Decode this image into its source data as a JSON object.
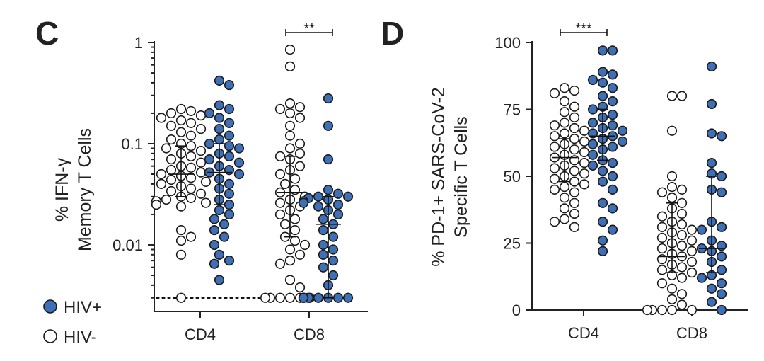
{
  "colors": {
    "hiv_pos": "#3f6fb5",
    "hiv_neg": "#ffffff",
    "stroke": "#1a1a1a"
  },
  "legend": {
    "entries": [
      {
        "label": "HIV+",
        "group": "hiv_pos"
      },
      {
        "label": "HIV-",
        "group": "hiv_neg"
      }
    ]
  },
  "chart_data": [
    {
      "type": "scatter",
      "panel_label": "C",
      "title": "",
      "ylabel_line1": "% IFN-γ",
      "ylabel_line2": "Memory T Cells",
      "yscale": "log",
      "ylim": [
        0.0022,
        1
      ],
      "yticks": [
        0.01,
        0.1,
        1
      ],
      "ytick_labels": [
        "0.01",
        "0.1",
        "1"
      ],
      "categories": [
        "CD4",
        "CD8"
      ],
      "detection_limit": 0.003,
      "series": [
        {
          "group": "hiv_neg",
          "name": "HIV-",
          "category": "CD4",
          "median": 0.05,
          "q1": 0.03,
          "q3": 0.095,
          "values": [
            0.22,
            0.21,
            0.2,
            0.19,
            0.18,
            0.17,
            0.16,
            0.15,
            0.14,
            0.13,
            0.12,
            0.11,
            0.1,
            0.095,
            0.09,
            0.085,
            0.08,
            0.075,
            0.07,
            0.065,
            0.06,
            0.058,
            0.055,
            0.052,
            0.05,
            0.048,
            0.046,
            0.044,
            0.042,
            0.04,
            0.038,
            0.036,
            0.034,
            0.032,
            0.03,
            0.029,
            0.028,
            0.027,
            0.026,
            0.025,
            0.024,
            0.014,
            0.012,
            0.011,
            0.008,
            0.003
          ]
        },
        {
          "group": "hiv_pos",
          "name": "HIV+",
          "category": "CD4",
          "median": 0.052,
          "q1": 0.025,
          "q3": 0.1,
          "values": [
            0.42,
            0.38,
            0.24,
            0.22,
            0.2,
            0.18,
            0.16,
            0.14,
            0.12,
            0.11,
            0.1,
            0.095,
            0.09,
            0.08,
            0.075,
            0.07,
            0.065,
            0.06,
            0.055,
            0.052,
            0.05,
            0.045,
            0.04,
            0.036,
            0.032,
            0.028,
            0.025,
            0.022,
            0.02,
            0.018,
            0.016,
            0.014,
            0.012,
            0.01,
            0.008,
            0.007,
            0.0065,
            0.0045
          ]
        },
        {
          "group": "hiv_neg",
          "name": "HIV-",
          "category": "CD8",
          "median": 0.033,
          "q1": 0.012,
          "q3": 0.075,
          "values": [
            0.85,
            0.58,
            0.25,
            0.23,
            0.22,
            0.2,
            0.18,
            0.15,
            0.12,
            0.1,
            0.09,
            0.08,
            0.075,
            0.07,
            0.06,
            0.055,
            0.05,
            0.045,
            0.04,
            0.035,
            0.033,
            0.03,
            0.028,
            0.026,
            0.024,
            0.022,
            0.02,
            0.018,
            0.016,
            0.014,
            0.012,
            0.011,
            0.01,
            0.009,
            0.008,
            0.007,
            0.0065,
            0.0045,
            0.0038,
            0.003,
            0.003,
            0.003,
            0.003,
            0.003,
            0.003
          ]
        },
        {
          "group": "hiv_pos",
          "name": "HIV+",
          "category": "CD8",
          "median": 0.016,
          "q1": 0.003,
          "q3": 0.03,
          "values": [
            0.28,
            0.15,
            0.07,
            0.035,
            0.032,
            0.03,
            0.03,
            0.029,
            0.028,
            0.027,
            0.026,
            0.025,
            0.024,
            0.022,
            0.02,
            0.018,
            0.016,
            0.014,
            0.012,
            0.01,
            0.009,
            0.008,
            0.007,
            0.006,
            0.005,
            0.004,
            0.003,
            0.003,
            0.003,
            0.003,
            0.003,
            0.003,
            0.003,
            0.003
          ]
        }
      ],
      "significance": [
        {
          "category": "CD8",
          "label": "**"
        }
      ]
    },
    {
      "type": "scatter",
      "panel_label": "D",
      "title": "",
      "ylabel_line1": "% PD-1+ SARS-CoV-2",
      "ylabel_line2": "Specific T Cells",
      "yscale": "linear",
      "ylim": [
        0,
        100
      ],
      "yticks": [
        0,
        25,
        50,
        75,
        100
      ],
      "ytick_labels": [
        "0",
        "25",
        "50",
        "75",
        "100"
      ],
      "categories": [
        "CD4",
        "CD8"
      ],
      "series": [
        {
          "group": "hiv_neg",
          "name": "HIV-",
          "category": "CD4",
          "median": 57,
          "q1": 48,
          "q3": 64,
          "values": [
            83,
            82,
            81,
            78,
            76,
            74,
            72,
            70,
            69,
            68,
            67,
            66,
            65,
            64,
            63,
            62,
            61,
            60,
            59,
            58,
            57,
            56,
            55,
            54,
            53,
            52,
            51,
            50,
            49,
            48,
            47,
            46,
            45,
            44,
            42,
            40,
            38,
            36,
            34,
            33,
            31
          ]
        },
        {
          "group": "hiv_pos",
          "name": "HIV+",
          "category": "CD4",
          "median": 65,
          "q1": 56,
          "q3": 75,
          "values": [
            97,
            97,
            89,
            88,
            86,
            85,
            83,
            80,
            78,
            76,
            75,
            73,
            72,
            70,
            69,
            68,
            67,
            66,
            65,
            64,
            63,
            62,
            61,
            60,
            58,
            56,
            55,
            54,
            52,
            50,
            48,
            45,
            40,
            38,
            33,
            30,
            26,
            22
          ]
        },
        {
          "group": "hiv_neg",
          "name": "HIV-",
          "category": "CD8",
          "median": 20,
          "q1": 14,
          "q3": 40,
          "values": [
            80,
            80,
            67,
            50,
            46,
            45,
            44,
            42,
            40,
            38,
            36,
            35,
            33,
            32,
            31,
            30,
            29,
            28,
            27,
            26,
            25,
            24,
            23,
            22,
            21,
            20,
            19,
            18,
            17,
            16,
            15,
            14,
            13,
            12,
            10,
            8,
            6,
            4,
            2,
            0,
            0,
            0,
            0,
            0
          ]
        },
        {
          "group": "hiv_pos",
          "name": "HIV+",
          "category": "CD8",
          "median": 23,
          "q1": 14,
          "q3": 50,
          "values": [
            91,
            77,
            66,
            65,
            55,
            51,
            50,
            45,
            44,
            33,
            31,
            30,
            26,
            24,
            23,
            22,
            20,
            18,
            15,
            13,
            12,
            10,
            8,
            6,
            3,
            0
          ]
        }
      ],
      "significance": [
        {
          "category": "CD4",
          "label": "***"
        }
      ]
    }
  ]
}
